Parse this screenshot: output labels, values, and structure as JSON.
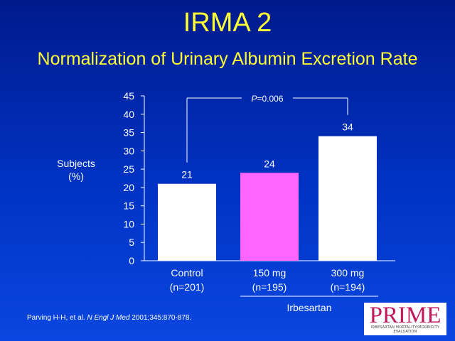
{
  "header": {
    "title": "IRMA 2",
    "subtitle": "Normalization of Urinary Albumin Excretion Rate"
  },
  "axis": {
    "ylabel_line1": "Subjects",
    "ylabel_line2": "(%)"
  },
  "chart_data": {
    "type": "bar",
    "categories": [
      {
        "line1": "Control",
        "line2": "(n=201)"
      },
      {
        "line1": "150 mg",
        "line2": "(n=195)"
      },
      {
        "line1": "300 mg",
        "line2": "(n=194)"
      }
    ],
    "values": [
      21,
      24,
      34
    ],
    "data_labels": [
      "21",
      "24",
      "34"
    ],
    "bar_colors": [
      "#ffffff",
      "#ff66ff",
      "#ffffff"
    ],
    "ylim": [
      0,
      45
    ],
    "yticks": [
      0,
      5,
      10,
      15,
      20,
      25,
      30,
      35,
      40,
      45
    ],
    "group_label": "Irbesartan",
    "significance": {
      "label_italic": "P",
      "label_rest": "=0.006",
      "from": 0,
      "to": 2
    },
    "grid": false
  },
  "footer": {
    "citation_authors": "Parving H-H, et al. ",
    "citation_journal": "N Engl J Med",
    "citation_rest": " 2001;345:870-878."
  },
  "logo": {
    "word": "PRIME",
    "tagline": "IRBESARTAN MORTALITY/MORBIDITY EVALUATION"
  },
  "colors": {
    "title": "#ffff33",
    "text": "#ffffff",
    "background_top": "#001a8c",
    "background_bottom": "#0a47e0"
  }
}
